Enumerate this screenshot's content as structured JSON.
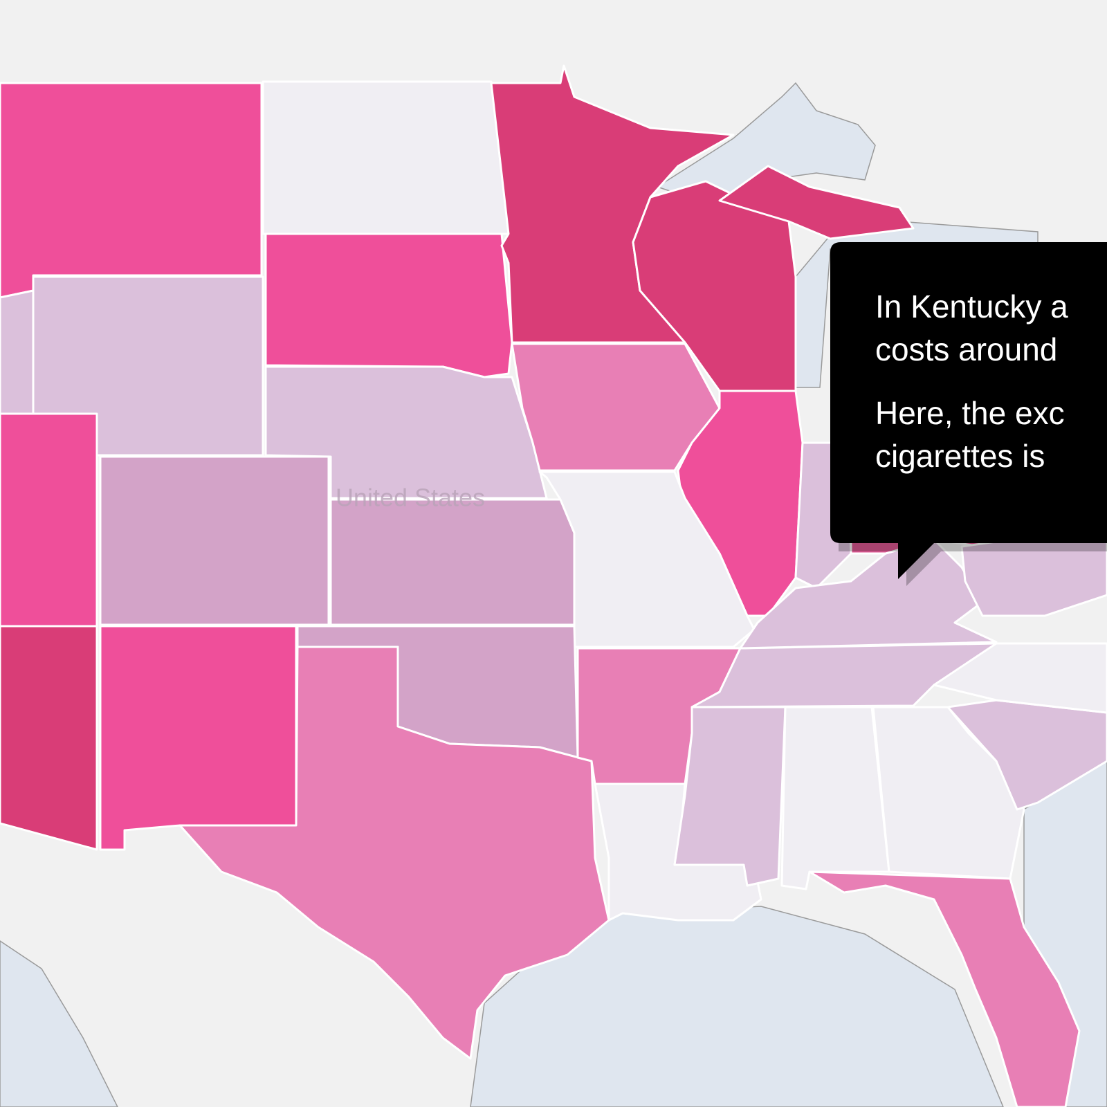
{
  "map_label": "United States",
  "tooltip": {
    "paragraphs": [
      [
        "In Kentucky a",
        "costs around"
      ],
      [
        "Here, the exc",
        "cigarettes is"
      ]
    ]
  }
}
